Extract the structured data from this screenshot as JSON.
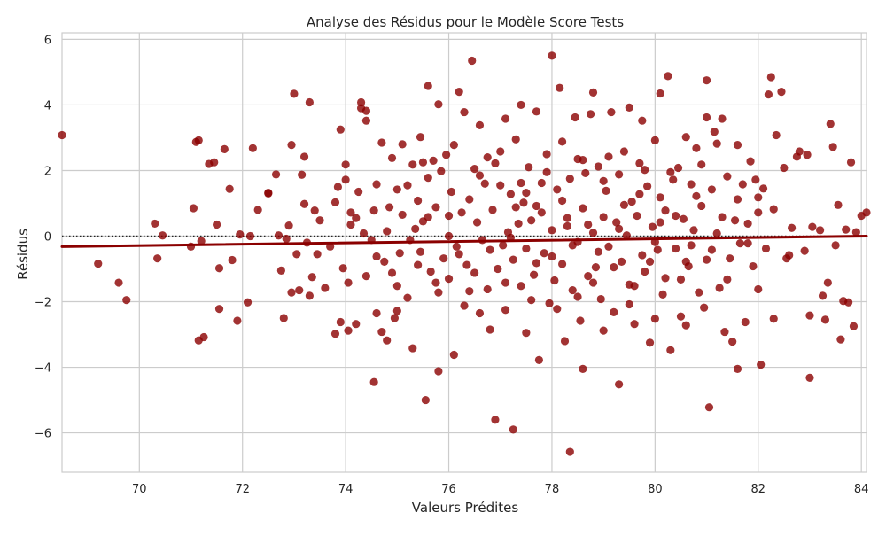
{
  "chart_data": {
    "type": "scatter",
    "title": "Analyse des Résidus pour le Modèle Score Tests",
    "xlabel": "Valeurs Prédites",
    "ylabel": "Résidus",
    "xlim": [
      68.5,
      84.1
    ],
    "ylim": [
      -7.2,
      6.2
    ],
    "xticks": [
      70,
      72,
      74,
      76,
      78,
      80,
      82,
      84
    ],
    "yticks": [
      -6,
      -4,
      -2,
      0,
      2,
      4,
      6
    ],
    "grid": true,
    "point_color": "#8B0000",
    "trend_color": "#8B0000",
    "zero_line_color": "#262626",
    "zero_line_style": "dotted",
    "trend_line": {
      "x": [
        68.5,
        84.1
      ],
      "y": [
        -0.32,
        0.0
      ]
    },
    "points": [
      [
        68.5,
        3.08
      ],
      [
        69.2,
        -0.84
      ],
      [
        69.6,
        -1.42
      ],
      [
        69.75,
        -1.95
      ],
      [
        70.3,
        0.38
      ],
      [
        70.35,
        -0.68
      ],
      [
        70.45,
        0.02
      ],
      [
        71.05,
        0.85
      ],
      [
        71.1,
        2.87
      ],
      [
        71.15,
        2.92
      ],
      [
        71.0,
        -0.32
      ],
      [
        71.2,
        -0.15
      ],
      [
        71.25,
        -3.08
      ],
      [
        71.15,
        -3.18
      ],
      [
        71.35,
        2.2
      ],
      [
        71.45,
        2.25
      ],
      [
        71.5,
        0.35
      ],
      [
        71.55,
        -0.98
      ],
      [
        71.55,
        -2.22
      ],
      [
        71.65,
        2.65
      ],
      [
        71.75,
        1.44
      ],
      [
        71.8,
        -0.73
      ],
      [
        71.95,
        0.05
      ],
      [
        71.9,
        -2.58
      ],
      [
        72.2,
        2.68
      ],
      [
        72.15,
        0.0
      ],
      [
        72.1,
        -2.02
      ],
      [
        72.3,
        0.8
      ],
      [
        72.5,
        1.3
      ],
      [
        72.5,
        1.32
      ],
      [
        72.65,
        1.88
      ],
      [
        72.7,
        0.02
      ],
      [
        72.75,
        -1.05
      ],
      [
        72.8,
        -2.5
      ],
      [
        72.85,
        -0.08
      ],
      [
        72.9,
        0.32
      ],
      [
        72.95,
        -1.72
      ],
      [
        72.95,
        2.78
      ],
      [
        73.0,
        4.34
      ],
      [
        73.05,
        -0.55
      ],
      [
        73.1,
        -1.65
      ],
      [
        73.15,
        1.87
      ],
      [
        73.2,
        0.98
      ],
      [
        73.2,
        2.42
      ],
      [
        73.25,
        -0.2
      ],
      [
        73.3,
        -1.82
      ],
      [
        73.3,
        4.08
      ],
      [
        73.35,
        -1.25
      ],
      [
        73.4,
        0.78
      ],
      [
        73.45,
        -0.55
      ],
      [
        73.5,
        0.48
      ],
      [
        73.6,
        -1.58
      ],
      [
        73.7,
        -0.32
      ],
      [
        73.8,
        -2.98
      ],
      [
        73.8,
        1.03
      ],
      [
        73.85,
        1.5
      ],
      [
        73.9,
        -2.62
      ],
      [
        73.9,
        3.25
      ],
      [
        73.95,
        -0.98
      ],
      [
        74.0,
        1.72
      ],
      [
        74.0,
        2.18
      ],
      [
        74.05,
        -2.88
      ],
      [
        74.05,
        -1.42
      ],
      [
        74.1,
        0.35
      ],
      [
        74.1,
        0.72
      ],
      [
        74.2,
        -2.68
      ],
      [
        74.25,
        1.35
      ],
      [
        74.3,
        3.9
      ],
      [
        74.3,
        4.08
      ],
      [
        74.35,
        0.08
      ],
      [
        74.4,
        3.82
      ],
      [
        74.4,
        3.52
      ],
      [
        74.5,
        -0.12
      ],
      [
        74.55,
        0.78
      ],
      [
        74.55,
        -4.45
      ],
      [
        74.6,
        -2.35
      ],
      [
        74.6,
        1.58
      ],
      [
        74.7,
        -2.92
      ],
      [
        74.7,
        2.85
      ],
      [
        74.75,
        -0.78
      ],
      [
        74.8,
        -3.18
      ],
      [
        74.85,
        0.88
      ],
      [
        74.9,
        -1.12
      ],
      [
        74.9,
        2.38
      ],
      [
        74.95,
        -2.5
      ],
      [
        75.0,
        -2.28
      ],
      [
        75.0,
        1.42
      ],
      [
        75.05,
        -0.52
      ],
      [
        75.1,
        2.8
      ],
      [
        75.1,
        0.65
      ],
      [
        75.2,
        -1.88
      ],
      [
        75.25,
        -0.12
      ],
      [
        75.3,
        -3.42
      ],
      [
        75.3,
        2.18
      ],
      [
        75.35,
        0.22
      ],
      [
        75.4,
        1.08
      ],
      [
        75.45,
        3.02
      ],
      [
        75.45,
        -0.48
      ],
      [
        75.5,
        2.25
      ],
      [
        75.5,
        0.45
      ],
      [
        75.55,
        -5.0
      ],
      [
        75.6,
        0.58
      ],
      [
        75.6,
        4.58
      ],
      [
        75.65,
        -1.08
      ],
      [
        75.7,
        2.3
      ],
      [
        75.75,
        -1.42
      ],
      [
        75.75,
        0.88
      ],
      [
        75.8,
        -4.12
      ],
      [
        75.8,
        4.02
      ],
      [
        75.85,
        1.98
      ],
      [
        75.9,
        -0.68
      ],
      [
        75.95,
        2.48
      ],
      [
        76.0,
        -1.3
      ],
      [
        76.0,
        0.0
      ],
      [
        76.05,
        1.35
      ],
      [
        76.1,
        -3.62
      ],
      [
        76.1,
        2.78
      ],
      [
        76.15,
        -0.32
      ],
      [
        76.2,
        4.4
      ],
      [
        76.25,
        0.72
      ],
      [
        76.3,
        -2.12
      ],
      [
        76.3,
        3.78
      ],
      [
        76.35,
        -0.88
      ],
      [
        76.4,
        1.12
      ],
      [
        76.45,
        5.35
      ],
      [
        76.5,
        -1.12
      ],
      [
        76.5,
        2.05
      ],
      [
        76.55,
        0.42
      ],
      [
        76.6,
        -2.35
      ],
      [
        76.6,
        3.38
      ],
      [
        76.65,
        -0.12
      ],
      [
        76.7,
        1.6
      ],
      [
        76.75,
        -1.62
      ],
      [
        76.75,
        2.4
      ],
      [
        76.8,
        -0.42
      ],
      [
        76.85,
        0.8
      ],
      [
        76.9,
        -5.6
      ],
      [
        76.9,
        2.22
      ],
      [
        76.95,
        -1.0
      ],
      [
        77.0,
        1.55
      ],
      [
        77.05,
        -0.28
      ],
      [
        77.1,
        3.58
      ],
      [
        77.1,
        -2.25
      ],
      [
        77.15,
        0.12
      ],
      [
        77.2,
        1.28
      ],
      [
        77.25,
        -5.9
      ],
      [
        77.25,
        -0.72
      ],
      [
        77.3,
        2.95
      ],
      [
        77.35,
        0.38
      ],
      [
        77.4,
        -1.52
      ],
      [
        77.4,
        4.0
      ],
      [
        77.45,
        1.02
      ],
      [
        77.5,
        -0.38
      ],
      [
        77.5,
        -2.95
      ],
      [
        77.55,
        2.1
      ],
      [
        77.6,
        0.48
      ],
      [
        77.65,
        -1.18
      ],
      [
        77.7,
        3.8
      ],
      [
        77.7,
        0.92
      ],
      [
        77.75,
        -3.78
      ],
      [
        77.8,
        1.62
      ],
      [
        77.85,
        -0.52
      ],
      [
        77.9,
        2.5
      ],
      [
        77.95,
        -2.05
      ],
      [
        78.0,
        0.18
      ],
      [
        78.0,
        5.5
      ],
      [
        78.05,
        -1.35
      ],
      [
        78.1,
        1.42
      ],
      [
        78.15,
        4.52
      ],
      [
        78.2,
        -0.85
      ],
      [
        78.2,
        2.88
      ],
      [
        78.25,
        -3.2
      ],
      [
        78.3,
        0.3
      ],
      [
        78.35,
        1.75
      ],
      [
        78.35,
        -6.58
      ],
      [
        78.4,
        -1.65
      ],
      [
        78.45,
        3.62
      ],
      [
        78.5,
        -0.18
      ],
      [
        78.5,
        2.35
      ],
      [
        78.55,
        -2.58
      ],
      [
        78.6,
        0.85
      ],
      [
        78.6,
        -4.05
      ],
      [
        78.65,
        1.92
      ],
      [
        78.7,
        -1.22
      ],
      [
        78.75,
        3.72
      ],
      [
        78.8,
        0.1
      ],
      [
        78.8,
        4.38
      ],
      [
        78.85,
        -0.95
      ],
      [
        78.9,
        2.12
      ],
      [
        78.95,
        -1.92
      ],
      [
        79.0,
        0.58
      ],
      [
        79.0,
        -2.88
      ],
      [
        79.05,
        1.38
      ],
      [
        79.1,
        -0.32
      ],
      [
        79.15,
        3.78
      ],
      [
        79.2,
        -2.32
      ],
      [
        79.25,
        0.42
      ],
      [
        79.3,
        1.88
      ],
      [
        79.3,
        -4.52
      ],
      [
        79.35,
        -0.78
      ],
      [
        79.4,
        2.58
      ],
      [
        79.45,
        0.02
      ],
      [
        79.5,
        3.92
      ],
      [
        79.5,
        -1.48
      ],
      [
        79.55,
        1.05
      ],
      [
        79.6,
        -2.68
      ],
      [
        79.65,
        0.62
      ],
      [
        79.7,
        2.22
      ],
      [
        79.75,
        -0.58
      ],
      [
        79.75,
        3.52
      ],
      [
        79.8,
        -1.08
      ],
      [
        79.85,
        1.52
      ],
      [
        79.9,
        -3.25
      ],
      [
        79.95,
        0.28
      ],
      [
        80.0,
        2.92
      ],
      [
        80.0,
        -2.52
      ],
      [
        80.05,
        -0.42
      ],
      [
        80.1,
        4.35
      ],
      [
        80.1,
        1.18
      ],
      [
        80.15,
        -1.78
      ],
      [
        80.2,
        0.78
      ],
      [
        80.25,
        4.88
      ],
      [
        80.3,
        -3.48
      ],
      [
        80.35,
        1.72
      ],
      [
        80.4,
        -0.38
      ],
      [
        80.45,
        2.08
      ],
      [
        80.5,
        -1.32
      ],
      [
        80.55,
        0.52
      ],
      [
        80.6,
        3.02
      ],
      [
        80.6,
        -2.72
      ],
      [
        80.65,
        -0.92
      ],
      [
        80.7,
        1.58
      ],
      [
        80.75,
        0.18
      ],
      [
        80.8,
        2.68
      ],
      [
        80.85,
        -1.72
      ],
      [
        80.9,
        0.92
      ],
      [
        80.95,
        -2.18
      ],
      [
        81.0,
        4.75
      ],
      [
        81.0,
        3.62
      ],
      [
        81.05,
        -5.22
      ],
      [
        81.1,
        1.42
      ],
      [
        81.1,
        -0.42
      ],
      [
        81.15,
        3.18
      ],
      [
        81.2,
        2.82
      ],
      [
        81.25,
        -1.58
      ],
      [
        81.3,
        3.58
      ],
      [
        81.3,
        0.58
      ],
      [
        81.35,
        -2.92
      ],
      [
        81.4,
        1.82
      ],
      [
        81.45,
        -0.68
      ],
      [
        81.5,
        -3.22
      ],
      [
        81.55,
        0.48
      ],
      [
        81.6,
        2.78
      ],
      [
        81.6,
        -4.05
      ],
      [
        81.65,
        -0.22
      ],
      [
        81.7,
        1.58
      ],
      [
        81.75,
        -2.62
      ],
      [
        81.8,
        0.38
      ],
      [
        81.85,
        2.28
      ],
      [
        81.9,
        -0.92
      ],
      [
        81.95,
        1.72
      ],
      [
        82.0,
        -1.62
      ],
      [
        82.0,
        0.72
      ],
      [
        82.05,
        -3.92
      ],
      [
        82.1,
        1.45
      ],
      [
        82.15,
        -0.38
      ],
      [
        82.2,
        4.32
      ],
      [
        82.25,
        4.85
      ],
      [
        82.3,
        -2.52
      ],
      [
        82.3,
        0.82
      ],
      [
        82.35,
        3.08
      ],
      [
        82.45,
        4.4
      ],
      [
        82.5,
        2.08
      ],
      [
        82.55,
        -0.68
      ],
      [
        82.6,
        -0.58
      ],
      [
        82.65,
        0.25
      ],
      [
        82.75,
        2.42
      ],
      [
        82.8,
        2.58
      ],
      [
        82.9,
        -0.45
      ],
      [
        82.95,
        2.48
      ],
      [
        83.0,
        -4.32
      ],
      [
        83.0,
        -2.42
      ],
      [
        83.05,
        0.28
      ],
      [
        83.2,
        0.18
      ],
      [
        83.3,
        -2.55
      ],
      [
        83.4,
        3.42
      ],
      [
        83.5,
        -0.28
      ],
      [
        83.6,
        -3.15
      ],
      [
        83.65,
        -1.98
      ],
      [
        83.7,
        0.2
      ],
      [
        83.75,
        -2.02
      ],
      [
        83.8,
        2.25
      ],
      [
        83.85,
        -2.75
      ],
      [
        83.9,
        0.12
      ],
      [
        84.0,
        0.62
      ],
      [
        84.1,
        0.72
      ],
      [
        83.45,
        2.72
      ],
      [
        83.55,
        0.95
      ],
      [
        83.25,
        -1.82
      ],
      [
        83.35,
        -1.42
      ],
      [
        76.2,
        -0.55
      ],
      [
        76.4,
        -1.68
      ],
      [
        76.6,
        1.85
      ],
      [
        76.8,
        -2.85
      ],
      [
        77.0,
        2.58
      ],
      [
        77.2,
        -0.05
      ],
      [
        77.4,
        1.62
      ],
      [
        77.6,
        -1.95
      ],
      [
        77.8,
        0.72
      ],
      [
        78.0,
        -0.62
      ],
      [
        78.2,
        1.08
      ],
      [
        78.4,
        -0.28
      ],
      [
        78.6,
        2.32
      ],
      [
        78.8,
        -1.42
      ],
      [
        79.0,
        1.68
      ],
      [
        79.2,
        -0.95
      ],
      [
        79.4,
        0.95
      ],
      [
        79.6,
        -1.52
      ],
      [
        79.8,
        2.02
      ],
      [
        80.0,
        -0.18
      ],
      [
        80.2,
        -1.28
      ],
      [
        80.4,
        0.62
      ],
      [
        80.6,
        -0.78
      ],
      [
        80.8,
        1.22
      ],
      [
        81.0,
        -0.72
      ],
      [
        81.2,
        0.08
      ],
      [
        81.4,
        -1.32
      ],
      [
        81.6,
        1.12
      ],
      [
        81.8,
        -0.22
      ],
      [
        82.0,
        1.18
      ],
      [
        75.4,
        -0.88
      ],
      [
        75.6,
        1.78
      ],
      [
        75.8,
        -1.72
      ],
      [
        76.0,
        0.62
      ],
      [
        74.8,
        0.15
      ],
      [
        74.6,
        -0.62
      ],
      [
        74.4,
        -1.22
      ],
      [
        74.2,
        0.55
      ],
      [
        75.2,
        1.55
      ],
      [
        75.0,
        -1.52
      ],
      [
        77.1,
        -1.42
      ],
      [
        77.3,
        0.88
      ],
      [
        77.5,
        1.32
      ],
      [
        77.7,
        -0.82
      ],
      [
        77.9,
        1.95
      ],
      [
        78.1,
        -2.22
      ],
      [
        78.3,
        0.55
      ],
      [
        78.5,
        -1.85
      ],
      [
        78.7,
        0.35
      ],
      [
        78.9,
        -0.48
      ],
      [
        79.1,
        2.42
      ],
      [
        79.3,
        0.22
      ],
      [
        79.5,
        -2.08
      ],
      [
        79.7,
        1.28
      ],
      [
        79.9,
        -0.78
      ],
      [
        80.1,
        0.42
      ],
      [
        80.3,
        1.95
      ],
      [
        80.5,
        -2.45
      ],
      [
        80.7,
        -0.28
      ],
      [
        80.9,
        2.18
      ]
    ]
  }
}
